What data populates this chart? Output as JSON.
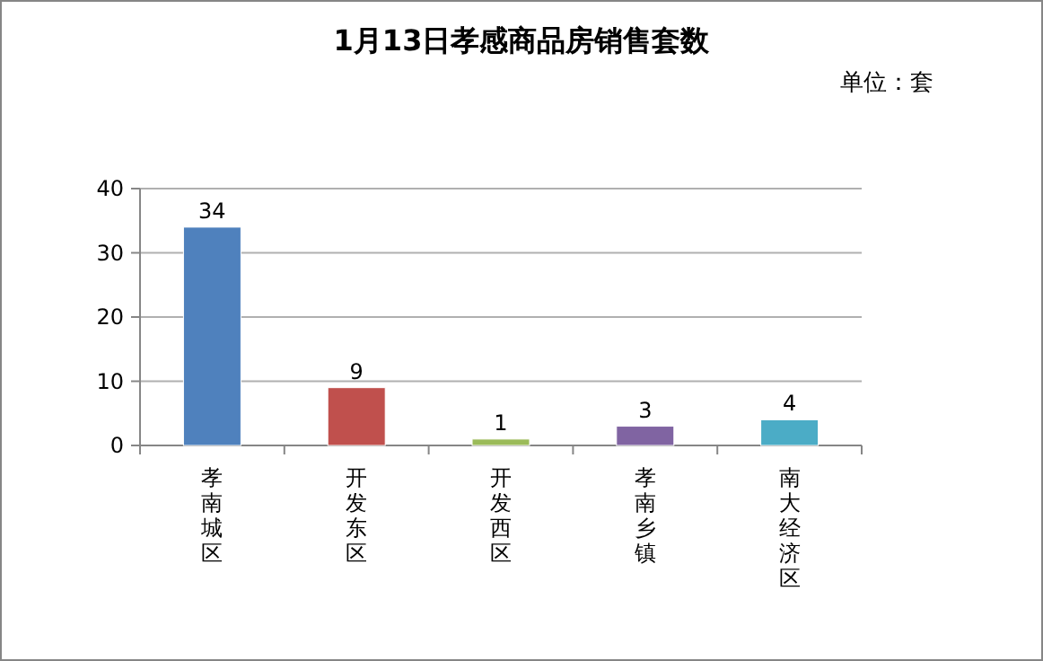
{
  "chart_data": {
    "type": "bar",
    "title": "1月13日孝感商品房销售套数",
    "subtitle": "单位：套",
    "categories": [
      "孝南城区",
      "开发东区",
      "开发西区",
      "孝南乡镇",
      "南大经济区"
    ],
    "values": [
      34,
      9,
      1,
      3,
      4
    ],
    "colors": [
      "#4f81bd",
      "#c0504d",
      "#9bbb59",
      "#8064a2",
      "#4bacc6"
    ],
    "ylim": [
      0,
      40
    ],
    "yticks": [
      0,
      10,
      20,
      30,
      40
    ],
    "grid": "y",
    "data_labels": true
  }
}
